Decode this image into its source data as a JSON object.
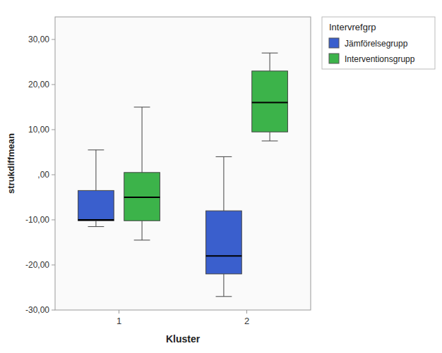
{
  "chart_data": {
    "type": "box",
    "xlabel": "Kluster",
    "ylabel": "strukdiffmean",
    "legend_title": "Intervrefgrp",
    "legend": "right",
    "grid": false,
    "categories": [
      "1",
      "2"
    ],
    "ylim": [
      -30,
      35
    ],
    "yticks": [
      {
        "value": -30,
        "label": "-30,00"
      },
      {
        "value": -20,
        "label": "-20,00"
      },
      {
        "value": -10,
        "label": "-10,00"
      },
      {
        "value": 0,
        "label": ",00"
      },
      {
        "value": 10,
        "label": "10,00"
      },
      {
        "value": 20,
        "label": "20,00"
      },
      {
        "value": 30,
        "label": "30,00"
      }
    ],
    "series": [
      {
        "name": "Jämförelsegrupp",
        "color": "#3a5fcd",
        "whisker_low": [
          -11.5,
          -27.0
        ],
        "q1": [
          -10.2,
          -22.0
        ],
        "median": [
          -10.0,
          -18.0
        ],
        "q3": [
          -3.5,
          -8.0
        ],
        "whisker_high": [
          5.5,
          4.0
        ]
      },
      {
        "name": "Interventionsgrupp",
        "color": "#3cb34a",
        "whisker_low": [
          -14.5,
          7.5
        ],
        "q1": [
          -10.2,
          9.5
        ],
        "median": [
          -5.0,
          16.0
        ],
        "q3": [
          0.5,
          23.0
        ],
        "whisker_high": [
          15.0,
          27.0
        ]
      }
    ]
  }
}
